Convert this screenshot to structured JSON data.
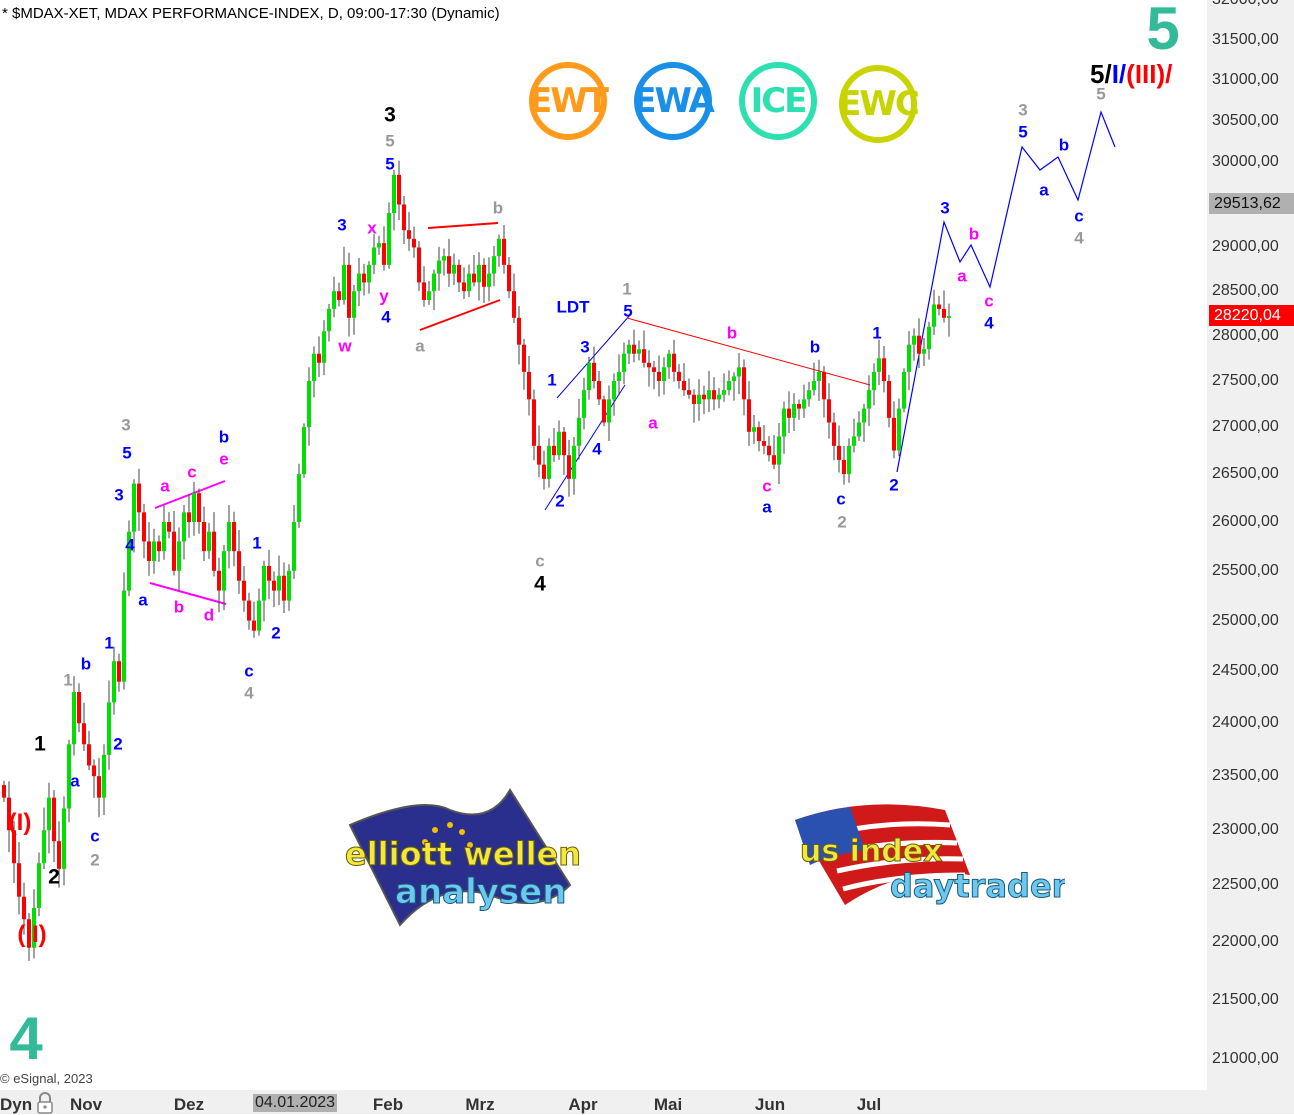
{
  "header": {
    "title": "* $MDAX-XET, MDAX PERFORMANCE-INDEX, D, 09:00-17:30 (Dynamic)"
  },
  "footer": {
    "copyright": "© eSignal, 2023",
    "mode_label": "Dyn",
    "lock_icon": "lock-icon"
  },
  "badges": [
    {
      "label": "EWT",
      "color": "#ff9a1a"
    },
    {
      "label": "EWA",
      "color": "#1a8fe8"
    },
    {
      "label": "ICE",
      "color": "#2ee0b0"
    },
    {
      "label": "EWC",
      "color": "#c8d400"
    }
  ],
  "logos": {
    "left": {
      "line1": "elliott wellen",
      "line2": "analysen"
    },
    "right": {
      "line1": "us index",
      "line2": "daytrader"
    }
  },
  "wave_degree": {
    "big_top": "5",
    "big_bottom": "4",
    "part1": "5/",
    "part2": "I",
    "part3": "/",
    "part4": "(III)",
    "part5": "/"
  },
  "colors": {
    "up": "#00e000",
    "down": "#ff0000",
    "black": "#000000",
    "grey": "#999999",
    "blue": "#0000ff",
    "magenta": "#ff00ff",
    "red": "#ff0000"
  },
  "chart_data": {
    "type": "candlestick",
    "scale": "log",
    "ylim": [
      21000,
      32000
    ],
    "y_ticks": [
      "32000,00",
      "31500,00",
      "31000,00",
      "30500,00",
      "30000,00",
      "29000,00",
      "28500,00",
      "28000,00",
      "27500,00",
      "27000,00",
      "26500,00",
      "26000,00",
      "25500,00",
      "25000,00",
      "24500,00",
      "24000,00",
      "23500,00",
      "23000,00",
      "22500,00",
      "22000,00",
      "21500,00",
      "21000,00"
    ],
    "x_ticks": [
      "Nov",
      "Dez",
      "Feb",
      "Mrz",
      "Apr",
      "Mai",
      "Jun",
      "Jul"
    ],
    "x_highlight": "04.01.2023",
    "price_tags": [
      {
        "value": "29513,62",
        "kind": "grey"
      },
      {
        "value": "28220,04",
        "kind": "last"
      }
    ],
    "closes": [
      23300,
      23000,
      22700,
      22400,
      22200,
      21950,
      22300,
      22700,
      23000,
      23300,
      22900,
      22650,
      23200,
      23800,
      24300,
      24000,
      23800,
      23600,
      23500,
      23300,
      23700,
      24200,
      24600,
      24400,
      25300,
      25900,
      26400,
      26100,
      25800,
      25600,
      25800,
      25700,
      26000,
      25900,
      25500,
      25800,
      26100,
      26000,
      26300,
      26000,
      25700,
      25900,
      25500,
      25300,
      25700,
      26000,
      25700,
      25400,
      25200,
      25000,
      24900,
      25200,
      25550,
      25400,
      25300,
      25450,
      25200,
      25500,
      26000,
      26500,
      27000,
      27500,
      27800,
      27700,
      28050,
      28300,
      28500,
      28400,
      28800,
      28200,
      28500,
      28700,
      28600,
      28800,
      29000,
      29050,
      28800,
      29400,
      29850,
      29500,
      29200,
      29100,
      29000,
      28600,
      28400,
      28500,
      28700,
      28850,
      28900,
      28700,
      28800,
      28600,
      28500,
      28700,
      28600,
      28800,
      28550,
      28700,
      28900,
      29100,
      28800,
      28500,
      28200,
      27900,
      27600,
      27300,
      26800,
      26600,
      26450,
      26800,
      26700,
      26950,
      26700,
      26450,
      26800,
      27100,
      27400,
      27700,
      27500,
      27300,
      27050,
      27300,
      27500,
      27600,
      27800,
      27900,
      27800,
      27850,
      27700,
      27650,
      27600,
      27500,
      27650,
      27800,
      27600,
      27500,
      27400,
      27350,
      27250,
      27350,
      27300,
      27400,
      27300,
      27350,
      27400,
      27500,
      27550,
      27650,
      27300,
      26950,
      27000,
      26850,
      26800,
      26700,
      26600,
      26900,
      27200,
      27100,
      27250,
      27200,
      27300,
      27400,
      27500,
      27600,
      27300,
      27050,
      26800,
      26650,
      26500,
      26800,
      26900,
      27050,
      27200,
      27400,
      27600,
      27750,
      27500,
      27100,
      26750,
      27200,
      27600,
      27900,
      28000,
      27800,
      27850,
      28100,
      28350,
      28300,
      28200,
      28220
    ],
    "annotations": [
      {
        "text": "(I)",
        "color": "red"
      },
      {
        "text": "(II)",
        "color": "red"
      },
      {
        "text": "1",
        "color": "black"
      },
      {
        "text": "2",
        "color": "black"
      },
      {
        "text": "a",
        "color": "blue"
      },
      {
        "text": "c",
        "color": "blue"
      },
      {
        "text": "2",
        "color": "grey"
      },
      {
        "text": "1",
        "color": "grey"
      },
      {
        "text": "b",
        "color": "blue"
      },
      {
        "text": "1",
        "color": "blue"
      },
      {
        "text": "2",
        "color": "blue"
      },
      {
        "text": "3",
        "color": "grey"
      },
      {
        "text": "5",
        "color": "blue"
      },
      {
        "text": "3",
        "color": "blue"
      },
      {
        "text": "4",
        "color": "blue"
      },
      {
        "text": "a",
        "color": "blue"
      },
      {
        "text": "a",
        "color": "magenta"
      },
      {
        "text": "c",
        "color": "magenta"
      },
      {
        "text": "b",
        "color": "blue"
      },
      {
        "text": "e",
        "color": "magenta"
      },
      {
        "text": "b",
        "color": "magenta"
      },
      {
        "text": "d",
        "color": "magenta"
      },
      {
        "text": "1",
        "color": "blue"
      },
      {
        "text": "2",
        "color": "blue"
      },
      {
        "text": "c",
        "color": "blue"
      },
      {
        "text": "4",
        "color": "grey"
      },
      {
        "text": "3",
        "color": "black"
      },
      {
        "text": "5",
        "color": "grey"
      },
      {
        "text": "5",
        "color": "blue"
      },
      {
        "text": "3",
        "color": "blue"
      },
      {
        "text": "x",
        "color": "magenta"
      },
      {
        "text": "y",
        "color": "magenta"
      },
      {
        "text": "4",
        "color": "blue"
      },
      {
        "text": "w",
        "color": "magenta"
      },
      {
        "text": "b",
        "color": "grey"
      },
      {
        "text": "a",
        "color": "grey"
      },
      {
        "text": "LDT",
        "color": "blue"
      },
      {
        "text": "1",
        "color": "grey"
      },
      {
        "text": "5",
        "color": "blue"
      },
      {
        "text": "3",
        "color": "blue"
      },
      {
        "text": "1",
        "color": "blue"
      },
      {
        "text": "4",
        "color": "blue"
      },
      {
        "text": "2",
        "color": "blue"
      },
      {
        "text": "c",
        "color": "grey"
      },
      {
        "text": "4",
        "color": "black"
      },
      {
        "text": "a",
        "color": "magenta"
      },
      {
        "text": "b",
        "color": "magenta"
      },
      {
        "text": "b",
        "color": "blue"
      },
      {
        "text": "c",
        "color": "magenta"
      },
      {
        "text": "a",
        "color": "blue"
      },
      {
        "text": "c",
        "color": "blue"
      },
      {
        "text": "2",
        "color": "grey"
      },
      {
        "text": "1",
        "color": "blue"
      },
      {
        "text": "2",
        "color": "blue"
      },
      {
        "text": "3",
        "color": "blue"
      },
      {
        "text": "b",
        "color": "magenta"
      },
      {
        "text": "a",
        "color": "magenta"
      },
      {
        "text": "c",
        "color": "magenta"
      },
      {
        "text": "4",
        "color": "blue"
      },
      {
        "text": "3",
        "color": "grey"
      },
      {
        "text": "5",
        "color": "blue"
      },
      {
        "text": "a",
        "color": "blue"
      },
      {
        "text": "b",
        "color": "blue"
      },
      {
        "text": "c",
        "color": "blue"
      },
      {
        "text": "4",
        "color": "grey"
      },
      {
        "text": "5",
        "color": "grey"
      }
    ]
  }
}
